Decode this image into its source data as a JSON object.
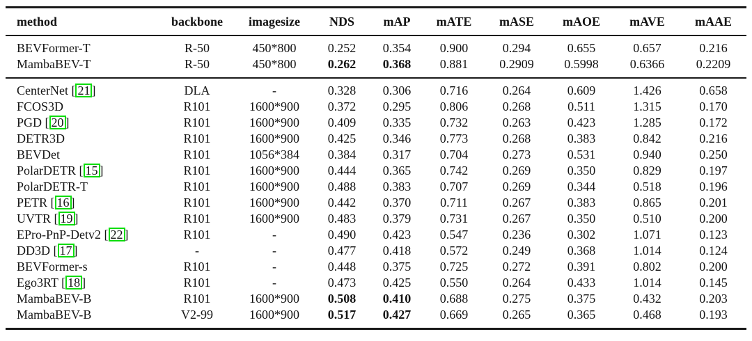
{
  "colors": {
    "citation_box": "#0ddd0d",
    "rule": "#1a1a1a",
    "background": "#ffffff"
  },
  "table": {
    "citation_brackets": [
      "[",
      "]"
    ],
    "columns": [
      {
        "key": "method",
        "label": "method",
        "align": "left"
      },
      {
        "key": "backbone",
        "label": "backbone",
        "align": "center"
      },
      {
        "key": "imagesize",
        "label": "imagesize",
        "align": "center"
      },
      {
        "key": "nds",
        "label": "NDS",
        "align": "center"
      },
      {
        "key": "map",
        "label": "mAP",
        "align": "center"
      },
      {
        "key": "mate",
        "label": "mATE",
        "align": "center"
      },
      {
        "key": "mase",
        "label": "mASE",
        "align": "center"
      },
      {
        "key": "maoe",
        "label": "mAOE",
        "align": "center"
      },
      {
        "key": "mave",
        "label": "mAVE",
        "align": "center"
      },
      {
        "key": "maae",
        "label": "mAAE",
        "align": "center"
      }
    ],
    "groups": [
      {
        "rows": [
          {
            "method": "BEVFormer-T",
            "backbone": "R-50",
            "imagesize": "450*800",
            "nds": "0.252",
            "map": "0.354",
            "mate": "0.900",
            "mase": "0.294",
            "maoe": "0.655",
            "mave": "0.657",
            "maae": "0.216",
            "bold": []
          },
          {
            "method": "MambaBEV-T",
            "backbone": "R-50",
            "imagesize": "450*800",
            "nds": "0.262",
            "map": "0.368",
            "mate": "0.881",
            "mase": "0.2909",
            "maoe": "0.5998",
            "mave": "0.6366",
            "maae": "0.2209",
            "bold": [
              "nds",
              "map"
            ]
          }
        ]
      },
      {
        "rows": [
          {
            "method": "CenterNet",
            "citation": "21",
            "backbone": "DLA",
            "imagesize": "-",
            "nds": "0.328",
            "map": "0.306",
            "mate": "0.716",
            "mase": "0.264",
            "maoe": "0.609",
            "mave": "1.426",
            "maae": "0.658",
            "bold": []
          },
          {
            "method": "FCOS3D",
            "backbone": "R101",
            "imagesize": "1600*900",
            "nds": "0.372",
            "map": "0.295",
            "mate": "0.806",
            "mase": "0.268",
            "maoe": "0.511",
            "mave": "1.315",
            "maae": "0.170",
            "bold": []
          },
          {
            "method": "PGD",
            "citation": "20",
            "backbone": "R101",
            "imagesize": "1600*900",
            "nds": "0.409",
            "map": "0.335",
            "mate": "0.732",
            "mase": "0.263",
            "maoe": "0.423",
            "mave": "1.285",
            "maae": "0.172",
            "bold": []
          },
          {
            "method": "DETR3D",
            "backbone": "R101",
            "imagesize": "1600*900",
            "nds": "0.425",
            "map": "0.346",
            "mate": "0.773",
            "mase": "0.268",
            "maoe": "0.383",
            "mave": "0.842",
            "maae": "0.216",
            "bold": []
          },
          {
            "method": "BEVDet",
            "backbone": "R101",
            "imagesize": "1056*384",
            "nds": "0.384",
            "map": "0.317",
            "mate": "0.704",
            "mase": "0.273",
            "maoe": "0.531",
            "mave": "0.940",
            "maae": "0.250",
            "bold": []
          },
          {
            "method": "PolarDETR",
            "citation": "15",
            "backbone": "R101",
            "imagesize": "1600*900",
            "nds": "0.444",
            "map": "0.365",
            "mate": "0.742",
            "mase": "0.269",
            "maoe": "0.350",
            "mave": "0.829",
            "maae": "0.197",
            "bold": []
          },
          {
            "method": "PolarDETR-T",
            "backbone": "R101",
            "imagesize": "1600*900",
            "nds": "0.488",
            "map": "0.383",
            "mate": "0.707",
            "mase": "0.269",
            "maoe": "0.344",
            "mave": "0.518",
            "maae": "0.196",
            "bold": []
          },
          {
            "method": "PETR",
            "citation": "16",
            "backbone": "R101",
            "imagesize": "1600*900",
            "nds": "0.442",
            "map": "0.370",
            "mate": "0.711",
            "mase": "0.267",
            "maoe": "0.383",
            "mave": "0.865",
            "maae": "0.201",
            "bold": []
          },
          {
            "method": "UVTR",
            "citation": "19",
            "backbone": "R101",
            "imagesize": "1600*900",
            "nds": "0.483",
            "map": "0.379",
            "mate": "0.731",
            "mase": "0.267",
            "maoe": "0.350",
            "mave": "0.510",
            "maae": "0.200",
            "bold": []
          },
          {
            "method": "EPro-PnP-Detv2",
            "citation": "22",
            "backbone": "R101",
            "imagesize": "-",
            "nds": "0.490",
            "map": "0.423",
            "mate": "0.547",
            "mase": "0.236",
            "maoe": "0.302",
            "mave": "1.071",
            "maae": "0.123",
            "bold": []
          },
          {
            "method": "DD3D",
            "citation": "17",
            "backbone": "-",
            "imagesize": "-",
            "nds": "0.477",
            "map": "0.418",
            "mate": "0.572",
            "mase": "0.249",
            "maoe": "0.368",
            "mave": "1.014",
            "maae": "0.124",
            "bold": []
          },
          {
            "method": "BEVFormer-s",
            "backbone": "R101",
            "imagesize": "-",
            "nds": "0.448",
            "map": "0.375",
            "mate": "0.725",
            "mase": "0.272",
            "maoe": "0.391",
            "mave": "0.802",
            "maae": "0.200",
            "bold": []
          },
          {
            "method": "Ego3RT",
            "citation": "18",
            "backbone": "R101",
            "imagesize": "-",
            "nds": "0.473",
            "map": "0.425",
            "mate": "0.550",
            "mase": "0.264",
            "maoe": "0.433",
            "mave": "1.014",
            "maae": "0.145",
            "bold": []
          },
          {
            "method": "MambaBEV-B",
            "backbone": "R101",
            "imagesize": "1600*900",
            "nds": "0.508",
            "map": "0.410",
            "mate": "0.688",
            "mase": "0.275",
            "maoe": "0.375",
            "mave": "0.432",
            "maae": "0.203",
            "bold": [
              "nds",
              "map"
            ]
          },
          {
            "method": "MambaBEV-B",
            "backbone": "V2-99",
            "imagesize": "1600*900",
            "nds": "0.517",
            "map": "0.427",
            "mate": "0.669",
            "mase": "0.265",
            "maoe": "0.365",
            "mave": "0.468",
            "maae": "0.193",
            "bold": [
              "nds",
              "map"
            ]
          }
        ]
      }
    ]
  }
}
